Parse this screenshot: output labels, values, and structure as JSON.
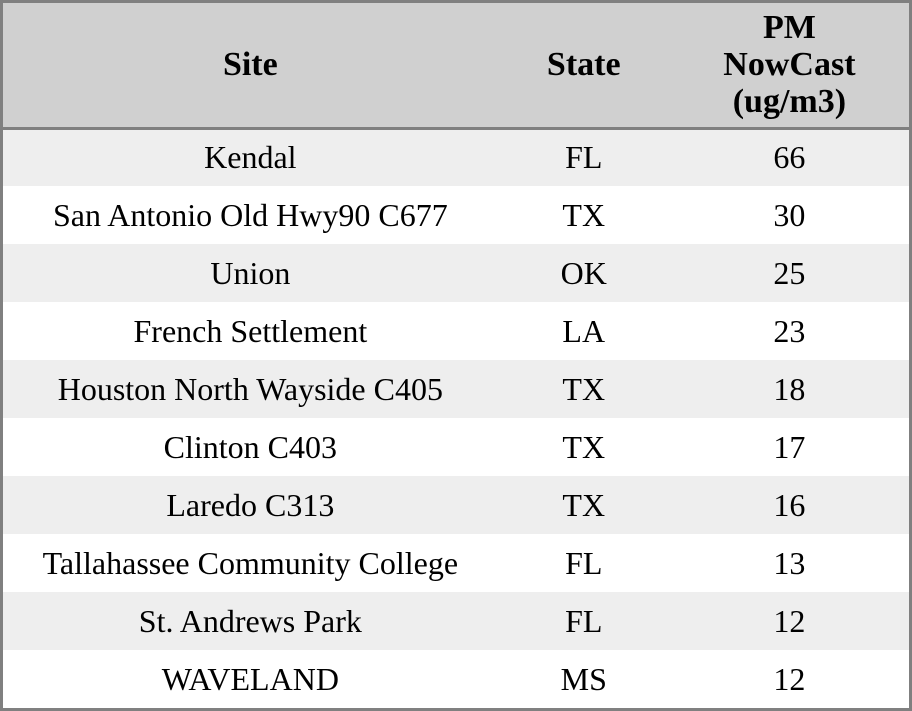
{
  "chart_data": {
    "type": "table",
    "columns": {
      "site": "Site",
      "state": "State",
      "pm": "PM\nNowCast\n(ug/m3)",
      "pm_flat": "PM NowCast (ug/m3)"
    },
    "rows": [
      {
        "site": "Kendal",
        "state": "FL",
        "value": 66
      },
      {
        "site": "San Antonio Old Hwy90 C677",
        "state": "TX",
        "value": 30
      },
      {
        "site": "Union",
        "state": "OK",
        "value": 25
      },
      {
        "site": "French Settlement",
        "state": "LA",
        "value": 23
      },
      {
        "site": "Houston North Wayside C405",
        "state": "TX",
        "value": 18
      },
      {
        "site": "Clinton C403",
        "state": "TX",
        "value": 17
      },
      {
        "site": "Laredo C313",
        "state": "TX",
        "value": 16
      },
      {
        "site": "Tallahassee Community College",
        "state": "FL",
        "value": 13
      },
      {
        "site": "St. Andrews Park",
        "state": "FL",
        "value": 12
      },
      {
        "site": "WAVELAND",
        "state": "MS",
        "value": 12
      }
    ]
  },
  "colors": {
    "header_bg": "#d0d0d0",
    "frame_border": "#808080",
    "row_alt_bg": "#eeeeee",
    "row_bg": "#ffffff",
    "text_color": "#000000"
  }
}
